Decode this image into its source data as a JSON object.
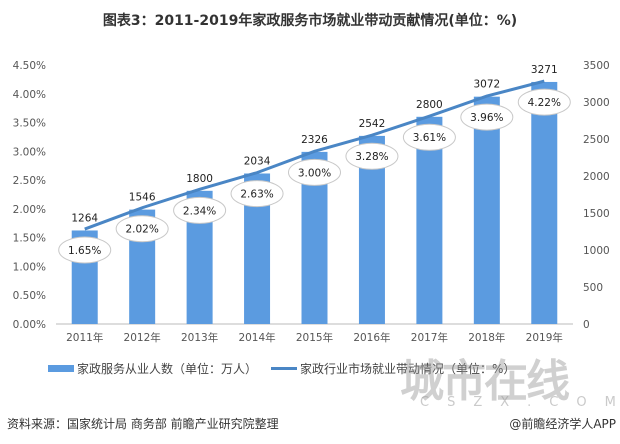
{
  "chart_data": {
    "type": "bar",
    "title": "图表3：2011-2019年家政服务市场就业带动贡献情况(单位：%)",
    "categories": [
      "2011年",
      "2012年",
      "2013年",
      "2014年",
      "2015年",
      "2016年",
      "2017年",
      "2018年",
      "2019年"
    ],
    "series": [
      {
        "name": "家政服务从业人数（单位：万人）",
        "type": "bar",
        "axis": "right",
        "values": [
          1264,
          1546,
          1800,
          2034,
          2326,
          2542,
          2800,
          3072,
          3271
        ],
        "labels": [
          "1264",
          "1546",
          "1800",
          "2034",
          "2326",
          "2542",
          "2800",
          "3072",
          "3271"
        ],
        "color": "#5b9be0"
      },
      {
        "name": "家政行业市场就业带动情况（单位：%）",
        "type": "line",
        "axis": "left",
        "values": [
          1.65,
          2.02,
          2.34,
          2.63,
          3.0,
          3.28,
          3.61,
          3.96,
          4.22
        ],
        "labels": [
          "1.65%",
          "2.02%",
          "2.34%",
          "2.63%",
          "3.00%",
          "3.28%",
          "3.61%",
          "3.96%",
          "4.22%"
        ],
        "color": "#4a86c5"
      }
    ],
    "left_axis": {
      "ylim": [
        0,
        4.5
      ],
      "ticks": [
        "0.00%",
        "0.50%",
        "1.00%",
        "1.50%",
        "2.00%",
        "2.50%",
        "3.00%",
        "3.50%",
        "4.00%",
        "4.50%"
      ]
    },
    "right_axis": {
      "ylim": [
        0,
        3500
      ],
      "ticks": [
        "0",
        "500",
        "1000",
        "1500",
        "2000",
        "2500",
        "3000",
        "3500"
      ]
    },
    "legend": "bottom",
    "grid": false
  },
  "source": "资料来源：国家统计局 商务部 前瞻产业研究院整理",
  "credit": "@前瞻经济学人APP",
  "watermark": {
    "text": "城市在线",
    "sub": "CSZX.COM"
  }
}
